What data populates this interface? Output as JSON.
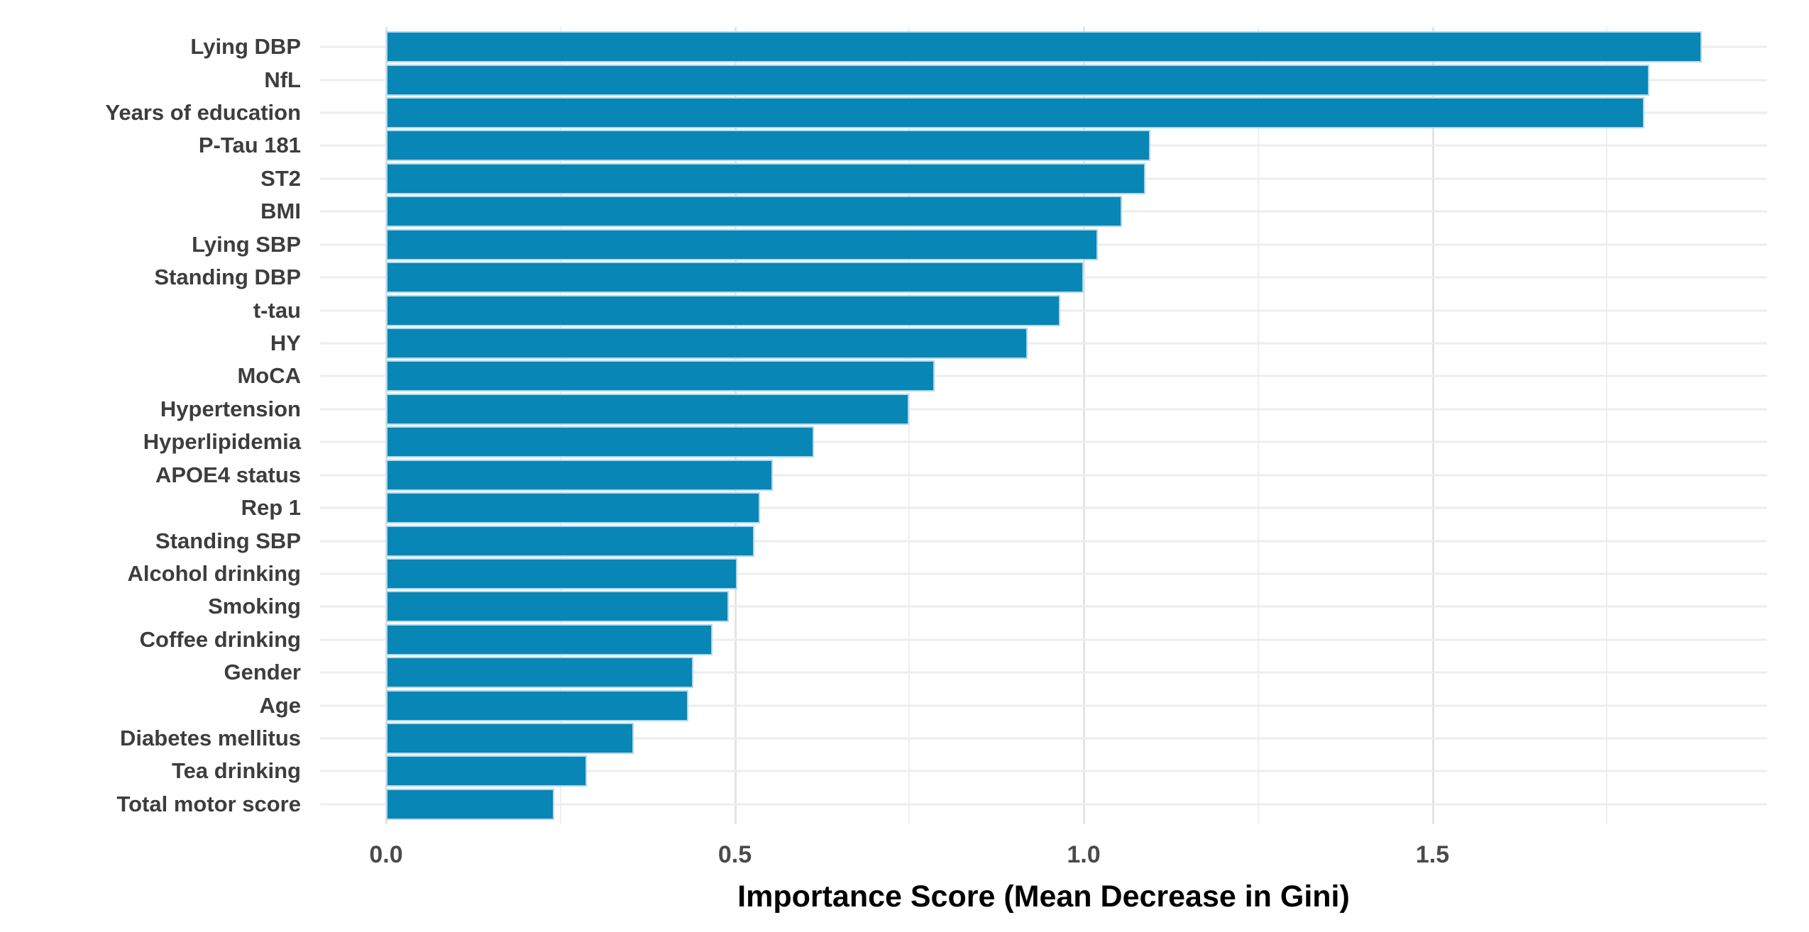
{
  "chart_data": {
    "type": "bar",
    "orientation": "horizontal",
    "title": "",
    "xlabel": "Importance Score (Mean Decrease in Gini)",
    "ylabel": "",
    "categories": [
      "Lying DBP",
      "NfL",
      "Years of education",
      "P-Tau 181",
      "ST2",
      "BMI",
      "Lying SBP",
      "Standing DBP",
      "t-tau",
      "HY",
      "MoCA",
      "Hypertension",
      "Hyperlipidemia",
      "APOE4 status",
      "Rep 1",
      "Standing SBP",
      "Alcohol drinking",
      "Smoking",
      "Coffee drinking",
      "Gender",
      "Age",
      "Diabetes mellitus",
      "Tea drinking",
      "Total motor score"
    ],
    "values": [
      1.886,
      1.811,
      1.804,
      1.096,
      1.088,
      1.055,
      1.02,
      1.0,
      0.966,
      0.92,
      0.786,
      0.75,
      0.613,
      0.554,
      0.536,
      0.528,
      0.504,
      0.491,
      0.468,
      0.44,
      0.433,
      0.355,
      0.288,
      0.241
    ],
    "x_ticks": [
      0.0,
      0.5,
      1.0,
      1.5
    ],
    "x_tick_labels": [
      "0.0",
      "0.5",
      "1.0",
      "1.5"
    ],
    "x_minor_gridlines": [
      0.25,
      0.75,
      1.25,
      1.75
    ],
    "xlim": [
      -0.095,
      1.98
    ],
    "grid": true,
    "legend": false,
    "bar_color": "#0886b6",
    "bar_border_color": "#b3d7e9",
    "major_grid_color": "#e4e4e4",
    "minor_grid_color": "#efefef",
    "axis_tick_text_color": "#4a4a4a",
    "category_label_color": "#3d3d3d",
    "axis_title_color": "#000000",
    "background_color": "#ffffff"
  }
}
